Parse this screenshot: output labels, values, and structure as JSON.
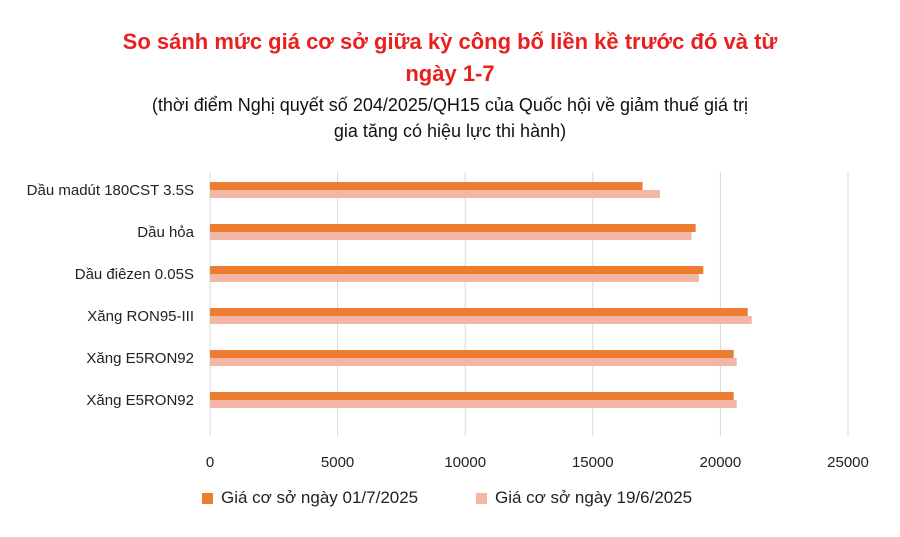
{
  "chart_data": {
    "type": "bar",
    "orientation": "horizontal",
    "title": "So sánh mức giá cơ sở giữa kỳ công bố liền kề trước đó và từ ngày 1-7",
    "title_lines": [
      "So sánh mức giá cơ sở giữa kỳ công bố liền kề trước đó và từ",
      "ngày 1-7"
    ],
    "subtitle_lines": [
      "(thời điểm Nghị quyết số 204/2025/QH15 của Quốc hội về giảm thuế giá trị",
      "gia tăng có hiệu lực thi hành)"
    ],
    "categories": [
      "Dầu madút 180CST 3.5S",
      "Dầu hỏa",
      "Dầu điêzen 0.05S",
      "Xăng RON95-III",
      "Xăng E5RON92",
      "Xăng E5RON92"
    ],
    "series": [
      {
        "name": "Giá cơ sở ngày 01/7/2025",
        "color": "#ed7d31",
        "values": [
          16950,
          19030,
          19330,
          21070,
          20520,
          20520
        ]
      },
      {
        "name": "Giá cơ sở ngày 19/6/2025",
        "color": "#f4b6a4",
        "values": [
          17630,
          18870,
          19160,
          21230,
          20640,
          20640
        ]
      }
    ],
    "xlim": [
      0,
      25000
    ],
    "xticks": [
      "0",
      "5000",
      "10000",
      "15000",
      "20000",
      "25000"
    ],
    "xtick_values": [
      0,
      5000,
      10000,
      15000,
      20000,
      25000
    ],
    "grid": true,
    "legend_position": "bottom"
  }
}
